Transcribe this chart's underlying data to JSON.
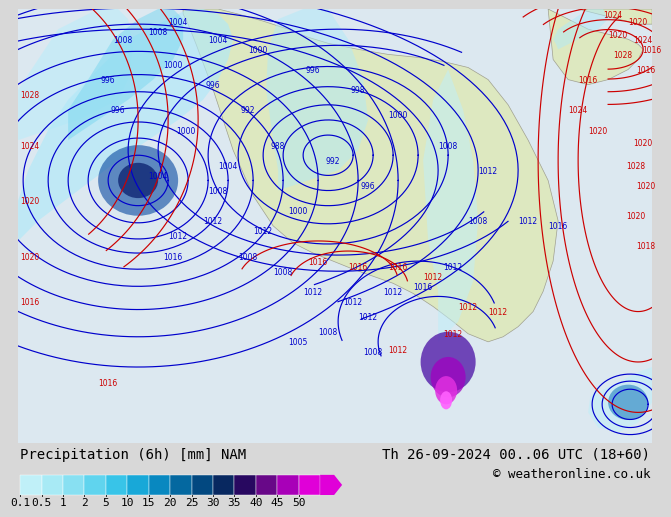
{
  "title_left": "Precipitation (6h) [mm] NAM",
  "title_right": "Th 26-09-2024 00..06 UTC (18+60)",
  "copyright": "© weatheronline.co.uk",
  "colorbar_tick_labels": [
    "0.1",
    "0.5",
    "1",
    "2",
    "5",
    "10",
    "15",
    "20",
    "25",
    "30",
    "35",
    "40",
    "45",
    "50"
  ],
  "colorbar_colors": [
    "#c8f0f0",
    "#b0e8e8",
    "#98e0e8",
    "#70d0e8",
    "#48c0e0",
    "#28a8d8",
    "#1888c0",
    "#0868a0",
    "#044880",
    "#082860",
    "#200850",
    "#600878",
    "#a000a0",
    "#e000d0",
    "#ff40ff"
  ],
  "bg_color": "#d8d8d8",
  "map_bg_ocean": "#dce8f0",
  "map_bg_land": "#e8edd8",
  "precip_light_cyan": "#b8eef8",
  "precip_medium_cyan": "#78d8f0",
  "precip_dark_blue": "#0848a0",
  "precip_dark_navy": "#082060",
  "precip_purple": "#8000a0",
  "precip_magenta": "#e020e0",
  "contour_blue_color": "#0000cc",
  "contour_red_color": "#cc0000",
  "title_fontsize": 10,
  "copyright_fontsize": 9,
  "label_fontsize": 5.5,
  "tick_fontsize": 8
}
